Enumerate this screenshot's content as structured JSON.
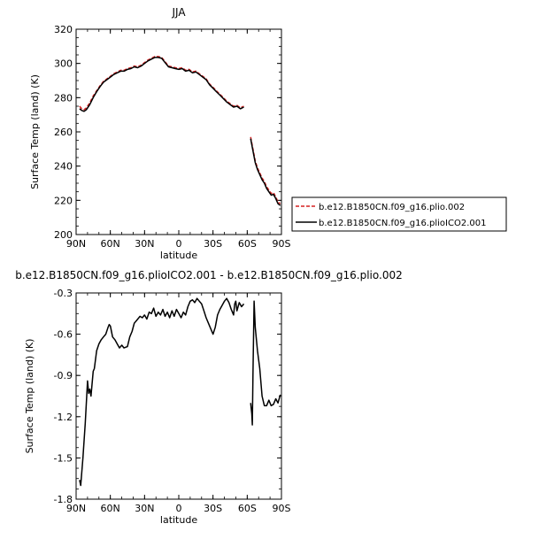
{
  "chart_data": [
    {
      "type": "line",
      "title": "JJA",
      "xlabel": "latitude",
      "ylabel": "Surface Temp (land) (K)",
      "ylim": [
        200,
        320
      ],
      "xlim": [
        90,
        -90
      ],
      "yticks": [
        "200",
        "220",
        "240",
        "260",
        "280",
        "300",
        "320"
      ],
      "xticks": [
        "90N",
        "60N",
        "30N",
        "0",
        "30S",
        "60S",
        "90S"
      ],
      "legend_position": "right",
      "series": [
        {
          "name": "b.e12.B1850CN.f09_g16.plio.002",
          "color": "#d62020",
          "dash": "dashed",
          "segments": [
            [
              [
                87,
                275
              ],
              [
                85,
                273.5
              ],
              [
                83,
                273
              ],
              [
                81,
                274
              ],
              [
                78,
                277
              ],
              [
                75,
                281
              ],
              [
                72,
                284
              ],
              [
                69,
                287
              ],
              [
                66,
                289.5
              ],
              [
                63,
                291
              ],
              [
                60,
                292.5
              ],
              [
                57,
                294
              ],
              [
                54,
                295
              ],
              [
                51,
                296
              ],
              [
                48,
                296
              ],
              [
                45,
                297
              ],
              [
                42,
                297.5
              ],
              [
                39,
                298.5
              ],
              [
                36,
                298
              ],
              [
                33,
                299
              ],
              [
                30,
                300.5
              ],
              [
                27,
                302
              ],
              [
                24,
                303
              ],
              [
                21,
                304
              ],
              [
                18,
                304
              ],
              [
                15,
                303.5
              ],
              [
                12,
                301
              ],
              [
                9,
                298.5
              ],
              [
                6,
                298
              ],
              [
                3,
                297.5
              ],
              [
                0,
                297
              ],
              [
                -3,
                297.5
              ],
              [
                -6,
                296
              ],
              [
                -9,
                296.5
              ],
              [
                -12,
                295
              ],
              [
                -15,
                295.5
              ],
              [
                -18,
                294
              ],
              [
                -21,
                292.5
              ],
              [
                -24,
                291
              ],
              [
                -27,
                288
              ],
              [
                -30,
                286
              ],
              [
                -33,
                284
              ],
              [
                -36,
                282
              ],
              [
                -39,
                280
              ],
              [
                -42,
                278
              ],
              [
                -45,
                276.5
              ],
              [
                -48,
                275
              ],
              [
                -51,
                275.5
              ],
              [
                -54,
                274
              ],
              [
                -57,
                275
              ]
            ],
            [
              [
                -63,
                257
              ],
              [
                -65,
                250
              ],
              [
                -67,
                243
              ],
              [
                -69,
                239
              ],
              [
                -71,
                236
              ],
              [
                -73,
                233
              ],
              [
                -75,
                231
              ],
              [
                -77,
                228
              ],
              [
                -79,
                226
              ],
              [
                -81,
                224
              ],
              [
                -83,
                224.5
              ],
              [
                -85,
                222
              ],
              [
                -87,
                219
              ],
              [
                -89,
                218
              ]
            ]
          ]
        },
        {
          "name": "b.e12.B1850CN.f09_g16.plioICO2.001",
          "color": "#000000",
          "dash": "solid",
          "segments": [
            [
              [
                87,
                273.5
              ],
              [
                85,
                272.5
              ],
              [
                83,
                272
              ],
              [
                81,
                273
              ],
              [
                78,
                276
              ],
              [
                75,
                280
              ],
              [
                72,
                283.5
              ],
              [
                69,
                286.5
              ],
              [
                66,
                289
              ],
              [
                63,
                290.5
              ],
              [
                60,
                292
              ],
              [
                57,
                293.5
              ],
              [
                54,
                294.5
              ],
              [
                51,
                295.5
              ],
              [
                48,
                295.5
              ],
              [
                45,
                296.5
              ],
              [
                42,
                297
              ],
              [
                39,
                298
              ],
              [
                36,
                297.5
              ],
              [
                33,
                298.5
              ],
              [
                30,
                300
              ],
              [
                27,
                301.5
              ],
              [
                24,
                302.5
              ],
              [
                21,
                303.5
              ],
              [
                18,
                303.5
              ],
              [
                15,
                303
              ],
              [
                12,
                300.5
              ],
              [
                9,
                298
              ],
              [
                6,
                297.5
              ],
              [
                3,
                297
              ],
              [
                0,
                296.5
              ],
              [
                -3,
                297
              ],
              [
                -6,
                295.5
              ],
              [
                -9,
                296
              ],
              [
                -12,
                294.5
              ],
              [
                -15,
                295
              ],
              [
                -18,
                293.5
              ],
              [
                -21,
                292
              ],
              [
                -24,
                290.5
              ],
              [
                -27,
                287.5
              ],
              [
                -30,
                285.5
              ],
              [
                -33,
                283.5
              ],
              [
                -36,
                281.5
              ],
              [
                -39,
                279.5
              ],
              [
                -42,
                277.5
              ],
              [
                -45,
                276
              ],
              [
                -48,
                274.5
              ],
              [
                -51,
                275
              ],
              [
                -54,
                273.5
              ],
              [
                -57,
                274.5
              ]
            ],
            [
              [
                -63,
                256
              ],
              [
                -65,
                249
              ],
              [
                -67,
                242
              ],
              [
                -69,
                238
              ],
              [
                -71,
                235
              ],
              [
                -73,
                232
              ],
              [
                -75,
                230
              ],
              [
                -77,
                227
              ],
              [
                -79,
                225
              ],
              [
                -81,
                223
              ],
              [
                -83,
                223.5
              ],
              [
                -85,
                221
              ],
              [
                -87,
                218
              ],
              [
                -89,
                217
              ]
            ]
          ]
        }
      ]
    },
    {
      "type": "line",
      "title": "b.e12.B1850CN.f09_g16.plioICO2.001 - b.e12.B1850CN.f09_g16.plio.002",
      "xlabel": "latitude",
      "ylabel": "Surface Temp (land) (K)",
      "ylim": [
        -1.8,
        -0.3
      ],
      "xlim": [
        90,
        -90
      ],
      "yticks": [
        "-1.8",
        "-1.5",
        "-1.2",
        "-0.9",
        "-0.6",
        "-0.3"
      ],
      "xticks": [
        "90N",
        "60N",
        "30N",
        "0",
        "30S",
        "60S",
        "90S"
      ],
      "series": [
        {
          "color": "#000000",
          "dash": "solid",
          "segments": [
            [
              [
                87,
                -1.66
              ],
              [
                86,
                -1.7
              ],
              [
                84,
                -1.5
              ],
              [
                82,
                -1.25
              ],
              [
                80,
                -0.94
              ],
              [
                79,
                -1.03
              ],
              [
                78,
                -1.0
              ],
              [
                77,
                -1.05
              ],
              [
                75,
                -0.87
              ],
              [
                74,
                -0.85
              ],
              [
                72,
                -0.72
              ],
              [
                70,
                -0.67
              ],
              [
                68,
                -0.64
              ],
              [
                66,
                -0.62
              ],
              [
                64,
                -0.6
              ],
              [
                62,
                -0.55
              ],
              [
                61,
                -0.53
              ],
              [
                60,
                -0.54
              ],
              [
                58,
                -0.62
              ],
              [
                56,
                -0.64
              ],
              [
                54,
                -0.67
              ],
              [
                52,
                -0.7
              ],
              [
                50,
                -0.68
              ],
              [
                48,
                -0.7
              ],
              [
                45,
                -0.69
              ],
              [
                43,
                -0.62
              ],
              [
                41,
                -0.58
              ],
              [
                39,
                -0.52
              ],
              [
                37,
                -0.5
              ],
              [
                34,
                -0.47
              ],
              [
                32,
                -0.48
              ],
              [
                30,
                -0.46
              ],
              [
                28,
                -0.49
              ],
              [
                26,
                -0.44
              ],
              [
                24,
                -0.45
              ],
              [
                22,
                -0.41
              ],
              [
                20,
                -0.47
              ],
              [
                18,
                -0.44
              ],
              [
                16,
                -0.46
              ],
              [
                14,
                -0.42
              ],
              [
                12,
                -0.47
              ],
              [
                10,
                -0.44
              ],
              [
                8,
                -0.48
              ],
              [
                6,
                -0.43
              ],
              [
                4,
                -0.47
              ],
              [
                2,
                -0.42
              ],
              [
                0,
                -0.45
              ],
              [
                -2,
                -0.48
              ],
              [
                -4,
                -0.44
              ],
              [
                -6,
                -0.46
              ],
              [
                -8,
                -0.4
              ],
              [
                -10,
                -0.36
              ],
              [
                -12,
                -0.35
              ],
              [
                -14,
                -0.37
              ],
              [
                -16,
                -0.34
              ],
              [
                -18,
                -0.36
              ],
              [
                -20,
                -0.38
              ],
              [
                -22,
                -0.43
              ],
              [
                -24,
                -0.48
              ],
              [
                -26,
                -0.52
              ],
              [
                -28,
                -0.56
              ],
              [
                -30,
                -0.6
              ],
              [
                -32,
                -0.55
              ],
              [
                -34,
                -0.46
              ],
              [
                -36,
                -0.42
              ],
              [
                -38,
                -0.39
              ],
              [
                -40,
                -0.36
              ],
              [
                -42,
                -0.34
              ],
              [
                -44,
                -0.37
              ],
              [
                -46,
                -0.42
              ],
              [
                -48,
                -0.46
              ],
              [
                -49,
                -0.38
              ],
              [
                -50,
                -0.36
              ],
              [
                -51,
                -0.43
              ],
              [
                -53,
                -0.37
              ],
              [
                -55,
                -0.4
              ],
              [
                -57,
                -0.38
              ]
            ],
            [
              [
                -63,
                -1.1
              ],
              [
                -64,
                -1.18
              ],
              [
                -64.5,
                -1.26
              ],
              [
                -65,
                -0.9
              ],
              [
                -66,
                -0.36
              ],
              [
                -67,
                -0.55
              ],
              [
                -69,
                -0.72
              ],
              [
                -71,
                -0.85
              ],
              [
                -73,
                -1.05
              ],
              [
                -75,
                -1.12
              ],
              [
                -77,
                -1.12
              ],
              [
                -79,
                -1.08
              ],
              [
                -81,
                -1.12
              ],
              [
                -83,
                -1.11
              ],
              [
                -85,
                -1.07
              ],
              [
                -87,
                -1.1
              ],
              [
                -89,
                -1.04
              ]
            ]
          ]
        }
      ]
    }
  ]
}
